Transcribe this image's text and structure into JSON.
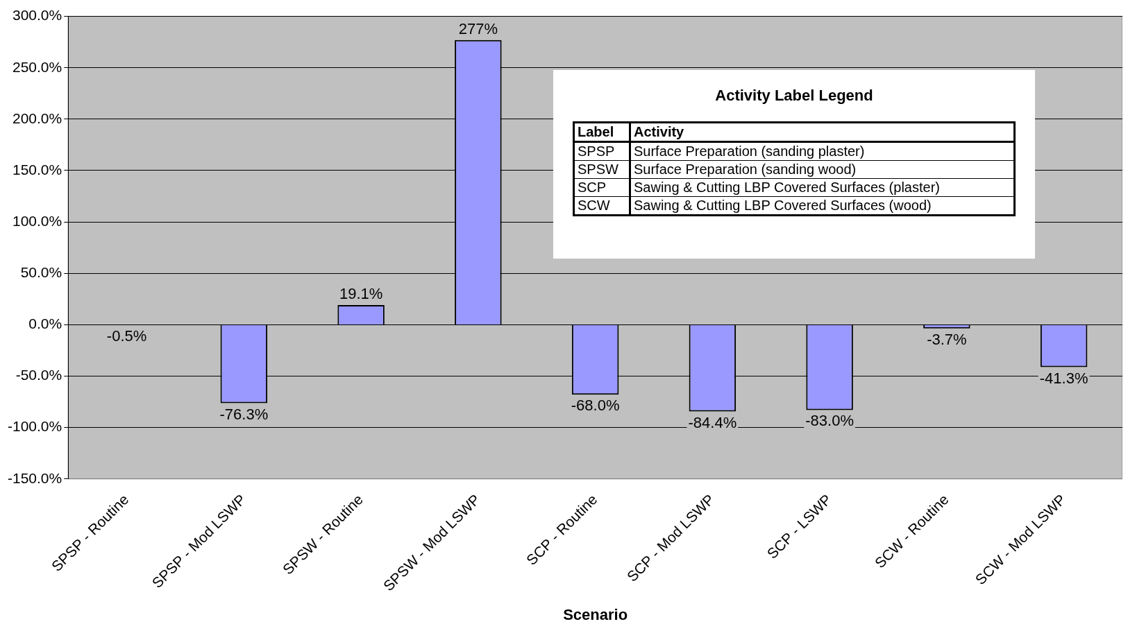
{
  "chart_data": {
    "type": "bar",
    "xlabel": "Scenario",
    "categories": [
      "SPSP - Routine",
      "SPSP - Mod LSWP",
      "SPSW - Routine",
      "SPSW - Mod LSWP",
      "SCP - Routine",
      "SCP - Mod LSWP",
      "SCP - LSWP",
      "SCW - Routine",
      "SCW - Mod LSWP"
    ],
    "values": [
      -0.5,
      -76.3,
      19.1,
      277,
      -68.0,
      -84.4,
      -83.0,
      -3.7,
      -41.3
    ],
    "value_labels": [
      "-0.5%",
      "-76.3%",
      "19.1%",
      "277%",
      "-68.0%",
      "-84.4%",
      "-83.0%",
      "-3.7%",
      "-41.3%"
    ],
    "color": "#9999ff",
    "ylim": [
      -150,
      300
    ],
    "yticks": [
      {
        "value": -150,
        "label": "-150.0%"
      },
      {
        "value": -100,
        "label": "-100.0%"
      },
      {
        "value": -50,
        "label": "-50.0%"
      },
      {
        "value": 0,
        "label": "0.0%"
      },
      {
        "value": 50,
        "label": "50.0%"
      },
      {
        "value": 100,
        "label": "100.0%"
      },
      {
        "value": 150,
        "label": "150.0%"
      },
      {
        "value": 200,
        "label": "200.0%"
      },
      {
        "value": 250,
        "label": "250.0%"
      },
      {
        "value": 300,
        "label": "300.0%"
      }
    ],
    "grid": "y",
    "annotations": [
      "Activity Label Legend",
      "Label",
      "Activity",
      "SPSP",
      "Surface Preparation (sanding plaster)",
      "SPSW",
      "Surface Preparation (sanding wood)",
      "SCP",
      "Sawing & Cutting LBP Covered Surfaces (plaster)",
      "SCW",
      "Sawing & Cutting LBP Covered Surfaces (wood)"
    ]
  }
}
